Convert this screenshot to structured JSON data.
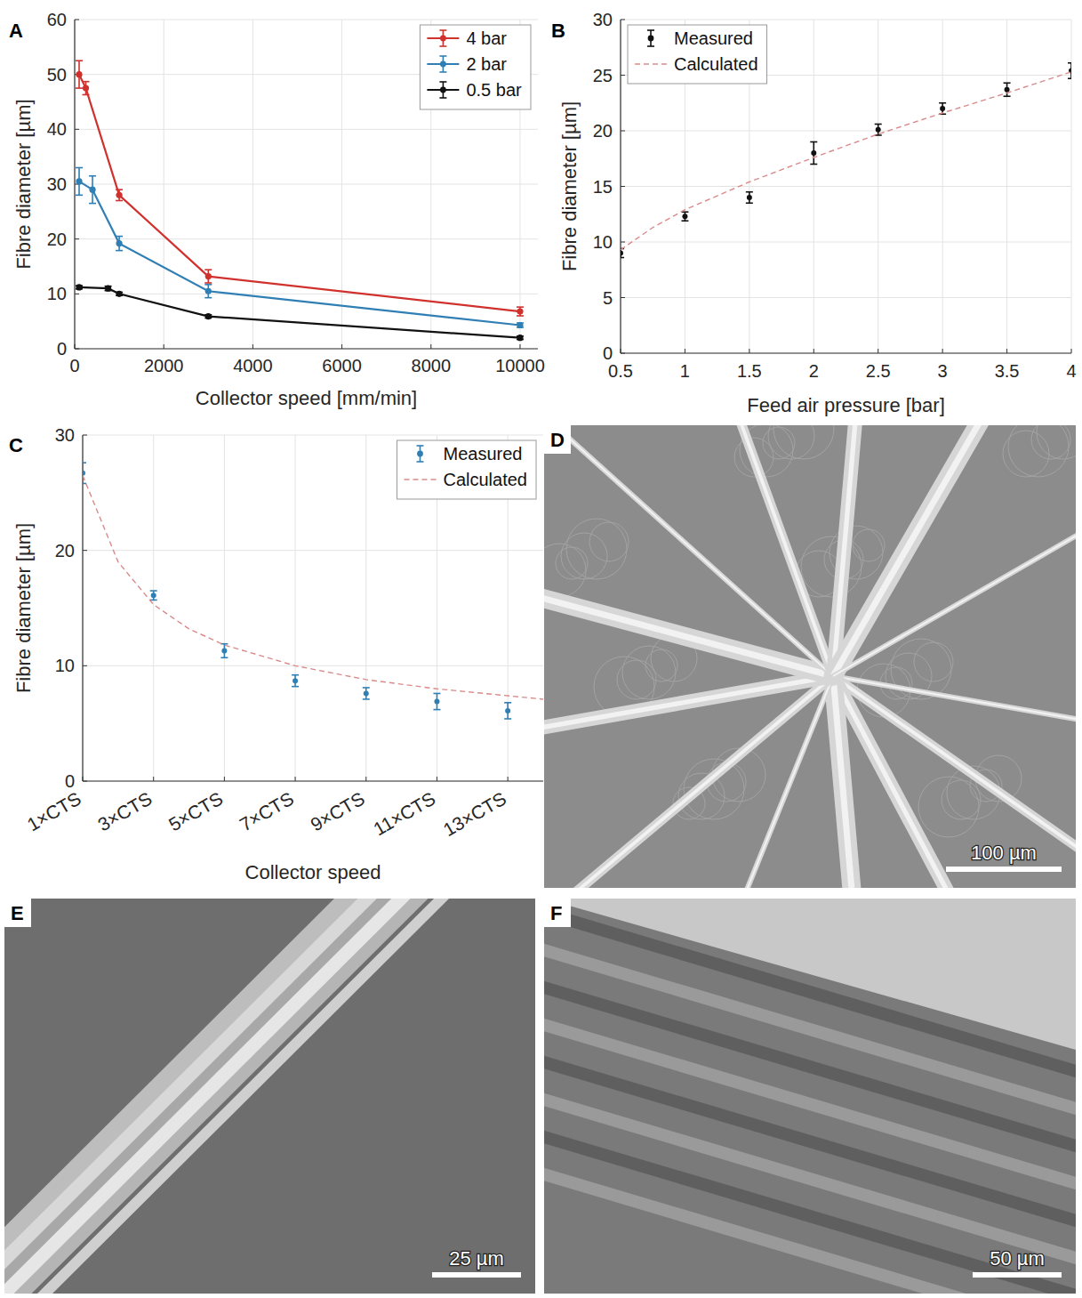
{
  "chart_data": [
    {
      "panel_label": "A",
      "type": "line",
      "x_label": "Collector speed [mm/min]",
      "y_label": "Fibre diameter [µm]",
      "xlim": [
        0,
        10400
      ],
      "xticks": [
        0,
        2000,
        4000,
        6000,
        8000,
        10000
      ],
      "ylim": [
        0,
        60
      ],
      "yticks": [
        0,
        10,
        20,
        30,
        40,
        50,
        60
      ],
      "grid": true,
      "legend": "top-right",
      "series": [
        {
          "name": "4 bar",
          "color": "#d0312d",
          "type": "line",
          "marker": "circle",
          "x": [
            100,
            250,
            1000,
            3000,
            10000
          ],
          "values": [
            50,
            47.5,
            28,
            13.2,
            6.8
          ],
          "errors": [
            2.5,
            1.2,
            1,
            1.2,
            0.8
          ]
        },
        {
          "name": "2 bar",
          "color": "#2f7fb5",
          "type": "line",
          "marker": "circle",
          "x": [
            100,
            400,
            1000,
            3000,
            10000
          ],
          "values": [
            30.5,
            29,
            19.2,
            10.5,
            4.3
          ],
          "errors": [
            2.5,
            2.5,
            1.3,
            1.2,
            0.4
          ]
        },
        {
          "name": "0.5 bar",
          "color": "#111111",
          "type": "line",
          "marker": "circle",
          "x": [
            100,
            750,
            1000,
            3000,
            10000
          ],
          "values": [
            11.2,
            11,
            10,
            5.9,
            2
          ],
          "errors": [
            0.3,
            0.4,
            0.3,
            0.3,
            0.3
          ]
        }
      ]
    },
    {
      "panel_label": "B",
      "type": "scatter",
      "x_label": "Feed air pressure [bar]",
      "y_label": "Fibre diameter [µm]",
      "xlim": [
        0.5,
        4
      ],
      "xticks": [
        0.5,
        1,
        1.5,
        2,
        2.5,
        3,
        3.5,
        4
      ],
      "ylim": [
        0,
        30
      ],
      "yticks": [
        0,
        5,
        10,
        15,
        20,
        25,
        30
      ],
      "grid": true,
      "legend": "top-left",
      "series": [
        {
          "name": "Measured",
          "color": "#111111",
          "type": "scatter",
          "marker": "point",
          "x": [
            0.5,
            1,
            1.5,
            2,
            2.5,
            3,
            3.5,
            4
          ],
          "values": [
            9,
            12.3,
            14,
            18,
            20.1,
            22,
            23.7,
            25.4
          ],
          "errors": [
            0.4,
            0.4,
            0.5,
            1,
            0.5,
            0.5,
            0.6,
            0.7
          ]
        },
        {
          "name": "Calculated",
          "color": "#d98a8a",
          "type": "line",
          "line_style": "dashed",
          "x": [
            0.5,
            0.75,
            1,
            1.5,
            2,
            2.5,
            3,
            3.5,
            4
          ],
          "values": [
            9.3,
            11.3,
            12.9,
            15.4,
            17.6,
            19.7,
            21.6,
            23.4,
            25.3
          ]
        }
      ]
    },
    {
      "panel_label": "C",
      "type": "scatter",
      "x_label": "Collector speed",
      "y_label": "Fibre diameter [µm]",
      "xlim": [
        1,
        14
      ],
      "xticks": [
        {
          "value": 1,
          "label": "1×CTS"
        },
        {
          "value": 3,
          "label": "3×CTS"
        },
        {
          "value": 5,
          "label": "5×CTS"
        },
        {
          "value": 7,
          "label": "7×CTS"
        },
        {
          "value": 9,
          "label": "9×CTS"
        },
        {
          "value": 11,
          "label": "11×CTS"
        },
        {
          "value": 13,
          "label": "13×CTS"
        }
      ],
      "ylim": [
        0,
        30
      ],
      "yticks": [
        0,
        10,
        20,
        30
      ],
      "grid": true,
      "legend": "top-right",
      "series": [
        {
          "name": "Measured",
          "color": "#2f7fb5",
          "type": "scatter",
          "marker": "point",
          "x": [
            1,
            3,
            5,
            7,
            9,
            11,
            13
          ],
          "values": [
            26.7,
            16.1,
            11.3,
            8.7,
            7.6,
            6.9,
            6.1
          ],
          "errors": [
            0.9,
            0.4,
            0.6,
            0.5,
            0.5,
            0.7,
            0.7
          ]
        },
        {
          "name": "Calculated",
          "color": "#d98a8a",
          "type": "line",
          "line_style": "dashed",
          "x": [
            1,
            2,
            3,
            4,
            5,
            7,
            9,
            11,
            13,
            14
          ],
          "values": [
            26.5,
            19,
            15.3,
            13.2,
            11.8,
            10,
            8.8,
            8,
            7.4,
            7.1
          ]
        }
      ]
    }
  ],
  "images": [
    {
      "panel_label": "D",
      "scale_bar": "100 µm"
    },
    {
      "panel_label": "E",
      "scale_bar": "25 µm"
    },
    {
      "panel_label": "F",
      "scale_bar": "50 µm"
    }
  ]
}
